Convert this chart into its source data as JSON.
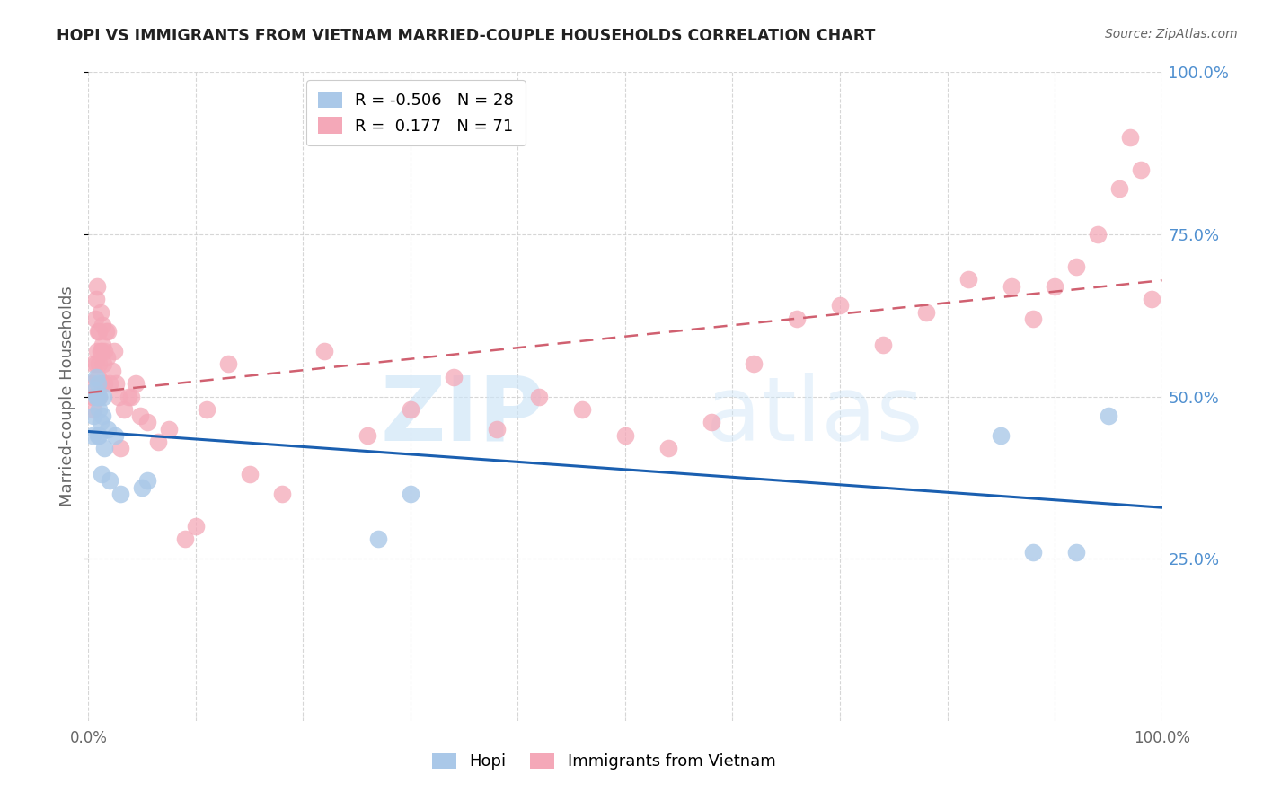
{
  "title": "HOPI VS IMMIGRANTS FROM VIETNAM MARRIED-COUPLE HOUSEHOLDS CORRELATION CHART",
  "source": "Source: ZipAtlas.com",
  "ylabel": "Married-couple Households",
  "xlim": [
    0,
    1.0
  ],
  "ylim": [
    0,
    1.0
  ],
  "ytick_positions": [
    0.25,
    0.5,
    0.75,
    1.0
  ],
  "ytick_labels_right": [
    "25.0%",
    "50.0%",
    "75.0%",
    "100.0%"
  ],
  "xtick_positions": [
    0.0,
    0.1,
    0.2,
    0.3,
    0.4,
    0.5,
    0.6,
    0.7,
    0.8,
    0.9,
    1.0
  ],
  "xtick_labels": [
    "0.0%",
    "",
    "",
    "",
    "",
    "",
    "",
    "",
    "",
    "",
    "100.0%"
  ],
  "hopi_color": "#aac8e8",
  "vietnam_color": "#f4a8b8",
  "hopi_line_color": "#1a5fb0",
  "vietnam_line_color": "#d06070",
  "hopi_R": -0.506,
  "hopi_N": 28,
  "vietnam_R": 0.177,
  "vietnam_N": 71,
  "hopi_x": [
    0.004,
    0.005,
    0.006,
    0.007,
    0.007,
    0.008,
    0.009,
    0.009,
    0.01,
    0.01,
    0.01,
    0.011,
    0.012,
    0.013,
    0.014,
    0.015,
    0.018,
    0.02,
    0.025,
    0.03,
    0.05,
    0.055,
    0.27,
    0.3,
    0.85,
    0.88,
    0.92,
    0.95
  ],
  "hopi_y": [
    0.44,
    0.47,
    0.51,
    0.5,
    0.53,
    0.5,
    0.44,
    0.52,
    0.48,
    0.5,
    0.44,
    0.46,
    0.38,
    0.47,
    0.5,
    0.42,
    0.45,
    0.37,
    0.44,
    0.35,
    0.36,
    0.37,
    0.28,
    0.35,
    0.44,
    0.26,
    0.26,
    0.47
  ],
  "vietnam_x": [
    0.003,
    0.004,
    0.005,
    0.005,
    0.006,
    0.007,
    0.007,
    0.008,
    0.008,
    0.009,
    0.009,
    0.01,
    0.01,
    0.01,
    0.011,
    0.011,
    0.012,
    0.012,
    0.013,
    0.013,
    0.014,
    0.015,
    0.015,
    0.016,
    0.017,
    0.018,
    0.02,
    0.022,
    0.024,
    0.026,
    0.028,
    0.03,
    0.033,
    0.037,
    0.04,
    0.044,
    0.048,
    0.055,
    0.065,
    0.075,
    0.09,
    0.1,
    0.11,
    0.13,
    0.15,
    0.18,
    0.22,
    0.26,
    0.3,
    0.34,
    0.38,
    0.42,
    0.46,
    0.5,
    0.54,
    0.58,
    0.62,
    0.66,
    0.7,
    0.74,
    0.78,
    0.82,
    0.86,
    0.88,
    0.9,
    0.92,
    0.94,
    0.96,
    0.97,
    0.98,
    0.99
  ],
  "vietnam_y": [
    0.52,
    0.5,
    0.55,
    0.48,
    0.62,
    0.55,
    0.65,
    0.67,
    0.57,
    0.6,
    0.53,
    0.5,
    0.55,
    0.6,
    0.57,
    0.63,
    0.52,
    0.57,
    0.58,
    0.61,
    0.55,
    0.52,
    0.57,
    0.6,
    0.56,
    0.6,
    0.52,
    0.54,
    0.57,
    0.52,
    0.5,
    0.42,
    0.48,
    0.5,
    0.5,
    0.52,
    0.47,
    0.46,
    0.43,
    0.45,
    0.28,
    0.3,
    0.48,
    0.55,
    0.38,
    0.35,
    0.57,
    0.44,
    0.48,
    0.53,
    0.45,
    0.5,
    0.48,
    0.44,
    0.42,
    0.46,
    0.55,
    0.62,
    0.64,
    0.58,
    0.63,
    0.68,
    0.67,
    0.62,
    0.67,
    0.7,
    0.75,
    0.82,
    0.9,
    0.85,
    0.65
  ],
  "background_color": "#ffffff",
  "grid_color": "#cccccc",
  "watermark_zip": "ZIP",
  "watermark_atlas": "atlas",
  "watermark_color": "#cce4f7",
  "right_label_color": "#5090d0",
  "title_color": "#222222",
  "label_color": "#666666"
}
